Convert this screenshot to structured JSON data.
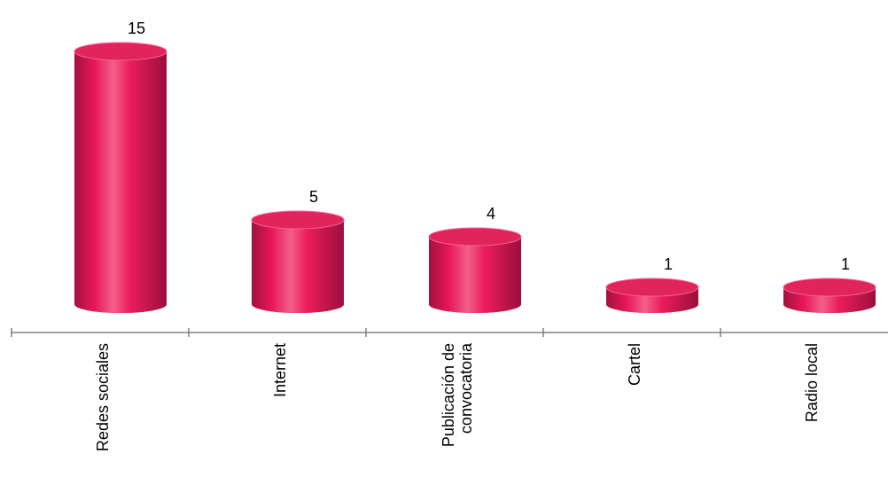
{
  "chart_data": {
    "type": "bar",
    "style": "3d-cylinder",
    "categories": [
      "Redes sociales",
      "Internet",
      "Publicación de convocatoria",
      "Cartel",
      "Radio local"
    ],
    "category_label_lines": [
      [
        "Redes sociales"
      ],
      [
        "Internet"
      ],
      [
        "Publicación de",
        "convocatoria"
      ],
      [
        "Cartel"
      ],
      [
        "Radio local"
      ]
    ],
    "values": [
      15,
      5,
      4,
      1,
      1
    ],
    "data_labels": [
      "15",
      "5",
      "4",
      "1",
      "1"
    ],
    "title": "",
    "xlabel": "",
    "ylabel": "",
    "ylim": [
      0,
      15
    ],
    "grid": false,
    "legend": "none",
    "colors": {
      "bar_body": "#e8175a",
      "bar_highlight": "#f25a86",
      "bar_shadow": "#9b0f3c",
      "bar_top": "#e2245c",
      "axis": "#808080"
    }
  }
}
